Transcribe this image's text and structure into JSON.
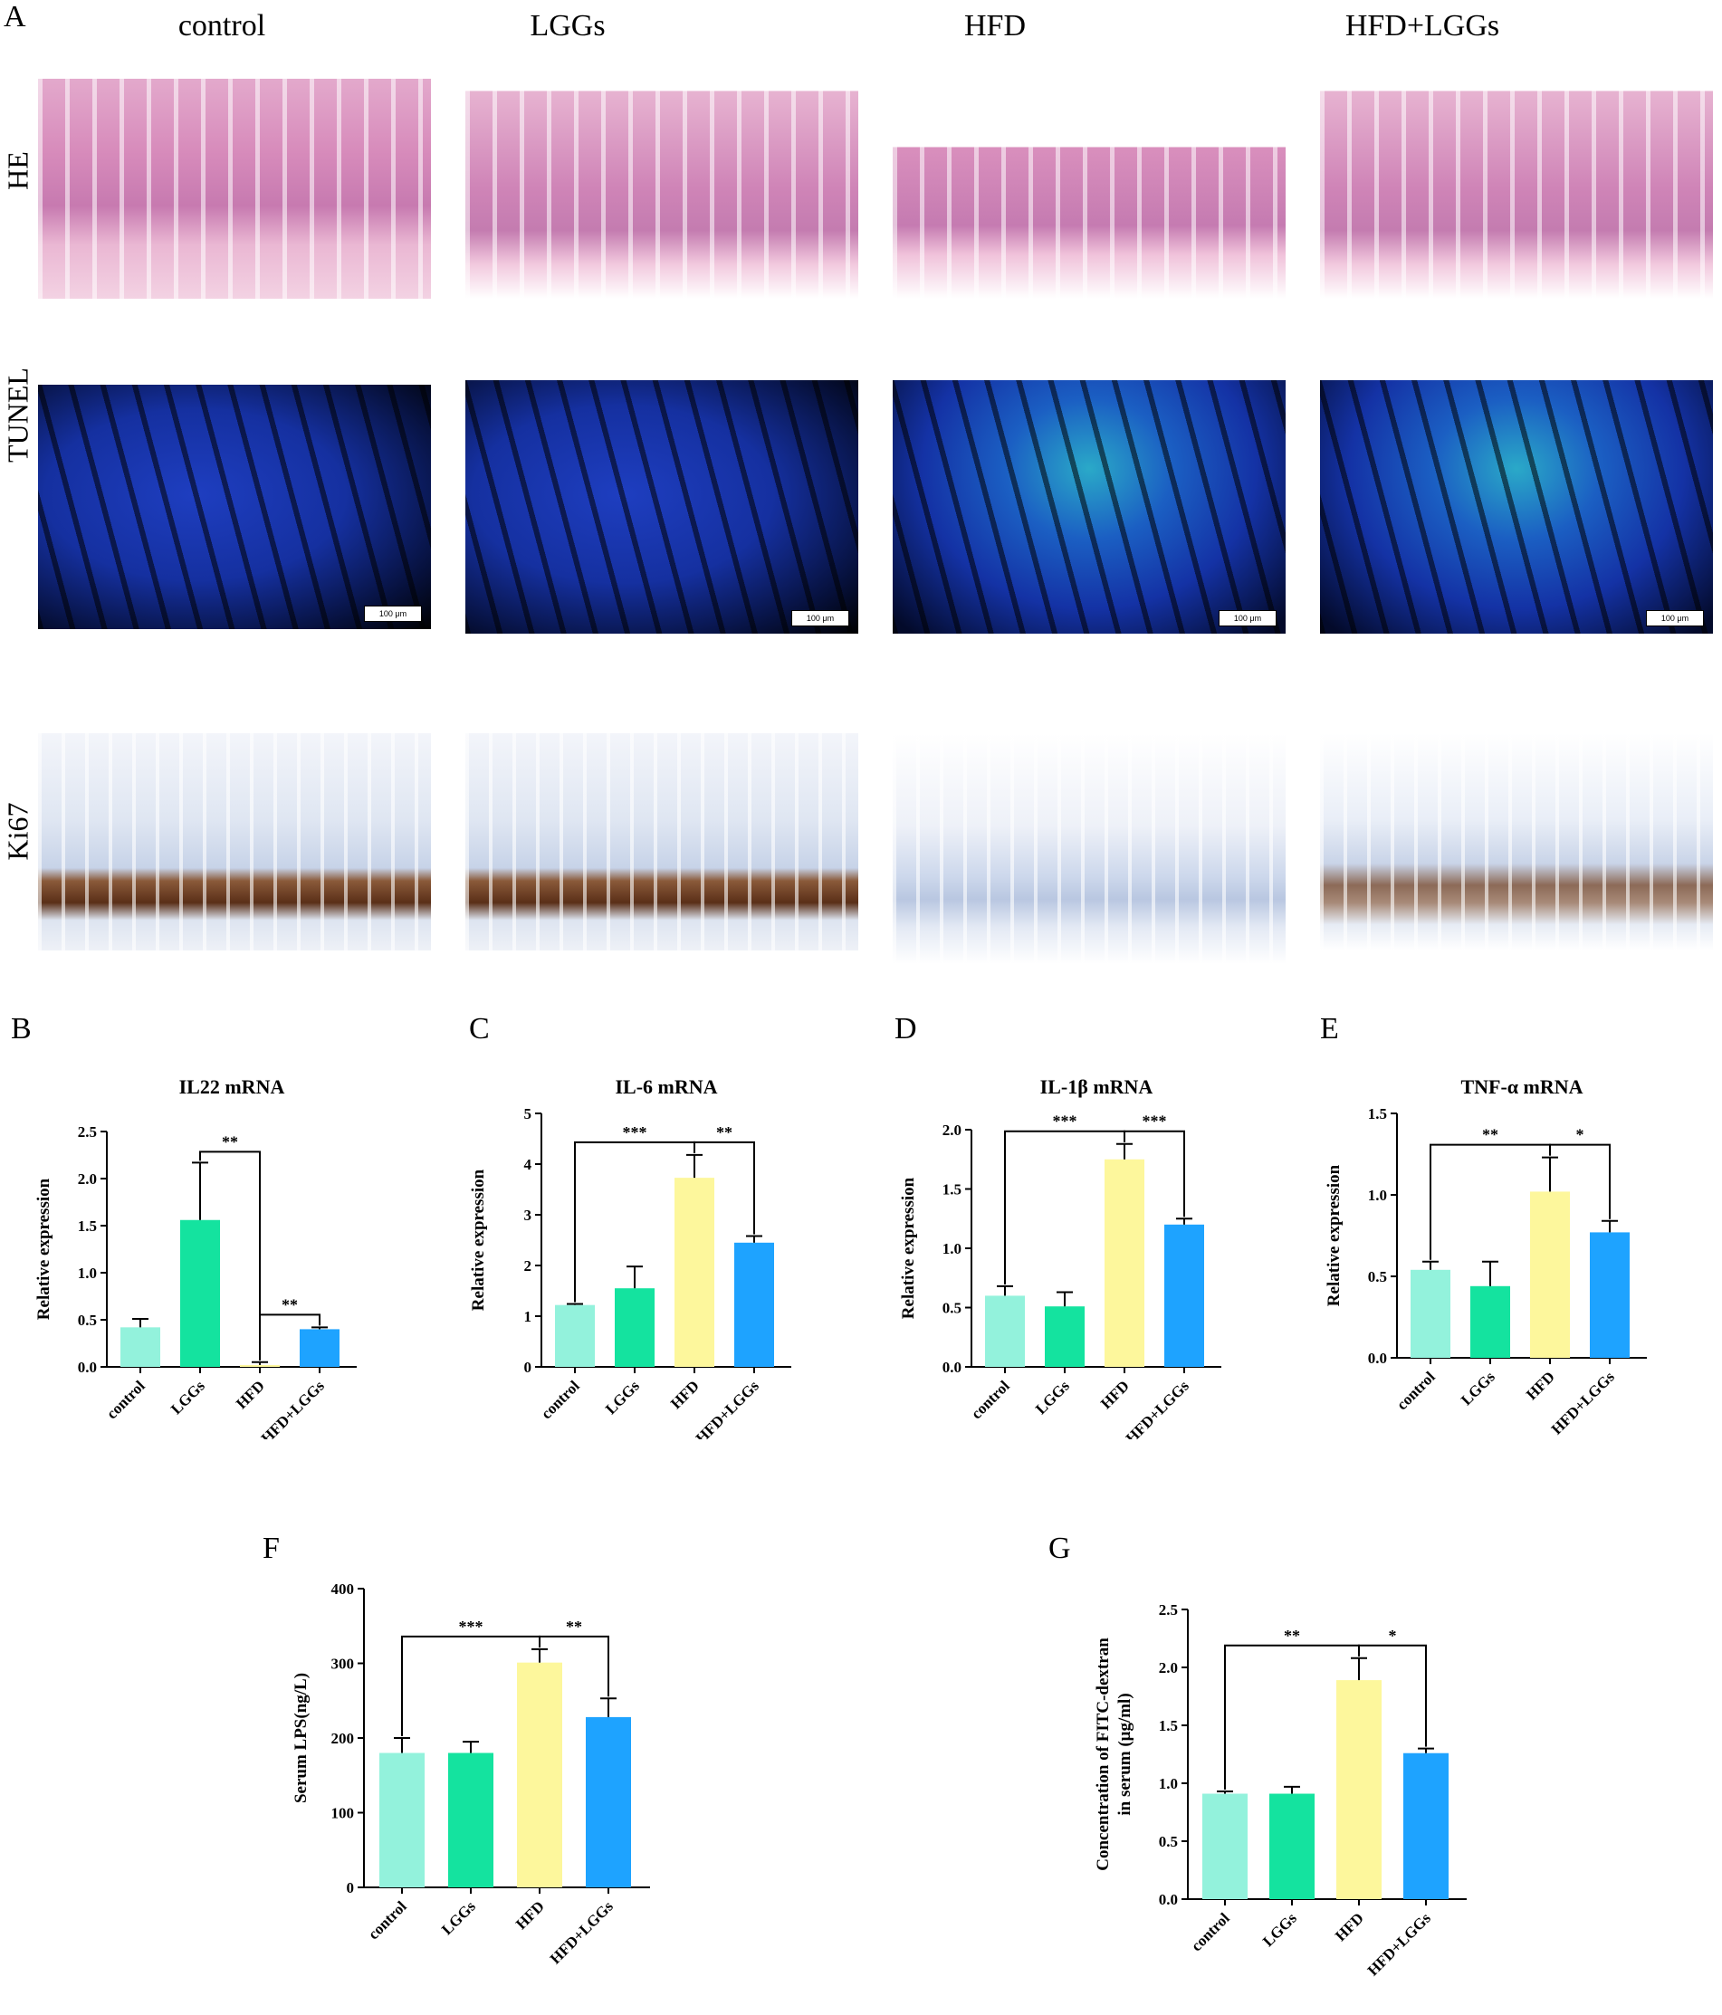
{
  "panels": {
    "A": "A",
    "B": "B",
    "C": "C",
    "D": "D",
    "E": "E",
    "F": "F",
    "G": "G"
  },
  "groups": [
    "control",
    "LGGs",
    "HFD",
    "HFD+LGGs"
  ],
  "rows": [
    "HE",
    "TUNEL",
    "Ki67"
  ],
  "scale_bar": "100 μm",
  "colors": [
    "#93f2dc",
    "#14e39f",
    "#fdf79c",
    "#1ea3ff"
  ],
  "chart_data": [
    {
      "id": "B",
      "type": "bar",
      "title": "IL22 mRNA",
      "ylabel": "Relative expression",
      "categories": [
        "control",
        "LGGs",
        "HFD",
        "HFD+LGGs"
      ],
      "values": [
        0.42,
        1.56,
        0.02,
        0.4
      ],
      "errors": [
        0.09,
        0.61,
        0.03,
        0.02
      ],
      "ylim": [
        0,
        2.5
      ],
      "ticks": [
        0.0,
        0.5,
        1.0,
        1.5,
        2.0,
        2.5
      ],
      "tick_labels": [
        "0.0",
        "0.5",
        "1.0",
        "1.5",
        "2.0",
        "2.5"
      ],
      "sig": [
        {
          "from": 1,
          "to": 2,
          "label": "**"
        },
        {
          "from": 2,
          "to": 3,
          "label": "**"
        }
      ]
    },
    {
      "id": "C",
      "type": "bar",
      "title": "IL-6 mRNA",
      "ylabel": "Relative expression",
      "categories": [
        "control",
        "LGGs",
        "HFD",
        "HFD+LGGs"
      ],
      "values": [
        1.22,
        1.55,
        3.73,
        2.45
      ],
      "errors": [
        0.02,
        0.43,
        0.45,
        0.13
      ],
      "ylim": [
        0,
        5
      ],
      "ticks": [
        0,
        1,
        2,
        3,
        4,
        5
      ],
      "tick_labels": [
        "0",
        "1",
        "2",
        "3",
        "4",
        "5"
      ],
      "sig": [
        {
          "from": 0,
          "to": 2,
          "label": "***"
        },
        {
          "from": 2,
          "to": 3,
          "label": "**"
        }
      ]
    },
    {
      "id": "D",
      "type": "bar",
      "title": "IL-1β mRNA",
      "ylabel": "Relative expression",
      "categories": [
        "control",
        "LGGs",
        "HFD",
        "HFD+LGGs"
      ],
      "values": [
        0.6,
        0.51,
        1.75,
        1.2
      ],
      "errors": [
        0.08,
        0.12,
        0.13,
        0.05
      ],
      "ylim": [
        0,
        2.0
      ],
      "ticks": [
        0.0,
        0.5,
        1.0,
        1.5,
        2.0
      ],
      "tick_labels": [
        "0.0",
        "0.5",
        "1.0",
        "1.5",
        "2.0"
      ],
      "sig": [
        {
          "from": 0,
          "to": 2,
          "label": "***"
        },
        {
          "from": 2,
          "to": 3,
          "label": "***"
        }
      ]
    },
    {
      "id": "E",
      "type": "bar",
      "title": "TNF-α mRNA",
      "ylabel": "Relative expression",
      "categories": [
        "control",
        "LGGs",
        "HFD",
        "HFD+LGGs"
      ],
      "values": [
        0.54,
        0.44,
        1.02,
        0.77
      ],
      "errors": [
        0.05,
        0.15,
        0.21,
        0.07
      ],
      "ylim": [
        0,
        1.5
      ],
      "ticks": [
        0.0,
        0.5,
        1.0,
        1.5
      ],
      "tick_labels": [
        "0.0",
        "0.5",
        "1.0",
        "1.5"
      ],
      "sig": [
        {
          "from": 0,
          "to": 2,
          "label": "**"
        },
        {
          "from": 2,
          "to": 3,
          "label": "*"
        }
      ]
    },
    {
      "id": "F",
      "type": "bar",
      "title": "",
      "ylabel": "Serum LPS(ng/L)",
      "categories": [
        "control",
        "LGGs",
        "HFD",
        "HFD+LGGs"
      ],
      "values": [
        180,
        180,
        301,
        228
      ],
      "errors": [
        20,
        15,
        18,
        25
      ],
      "ylim": [
        0,
        400
      ],
      "ticks": [
        0,
        100,
        200,
        300,
        400
      ],
      "tick_labels": [
        "0",
        "100",
        "200",
        "300",
        "400"
      ],
      "sig": [
        {
          "from": 0,
          "to": 2,
          "label": "***"
        },
        {
          "from": 2,
          "to": 3,
          "label": "**"
        }
      ]
    },
    {
      "id": "G",
      "type": "bar",
      "title": "",
      "ylabel": "Concentration of FITC-dextran",
      "ylabel2": "in serum (μg/ml)",
      "categories": [
        "control",
        "LGGs",
        "HFD",
        "HFD+LGGs"
      ],
      "values": [
        0.91,
        0.91,
        1.89,
        1.26
      ],
      "errors": [
        0.02,
        0.06,
        0.19,
        0.04
      ],
      "ylim": [
        0,
        2.5
      ],
      "ticks": [
        0.0,
        0.5,
        1.0,
        1.5,
        2.0,
        2.5
      ],
      "tick_labels": [
        "0.0",
        "0.5",
        "1.0",
        "1.5",
        "2.0",
        "2.5"
      ],
      "sig": [
        {
          "from": 0,
          "to": 2,
          "label": "**"
        },
        {
          "from": 2,
          "to": 3,
          "label": "*"
        }
      ]
    }
  ]
}
